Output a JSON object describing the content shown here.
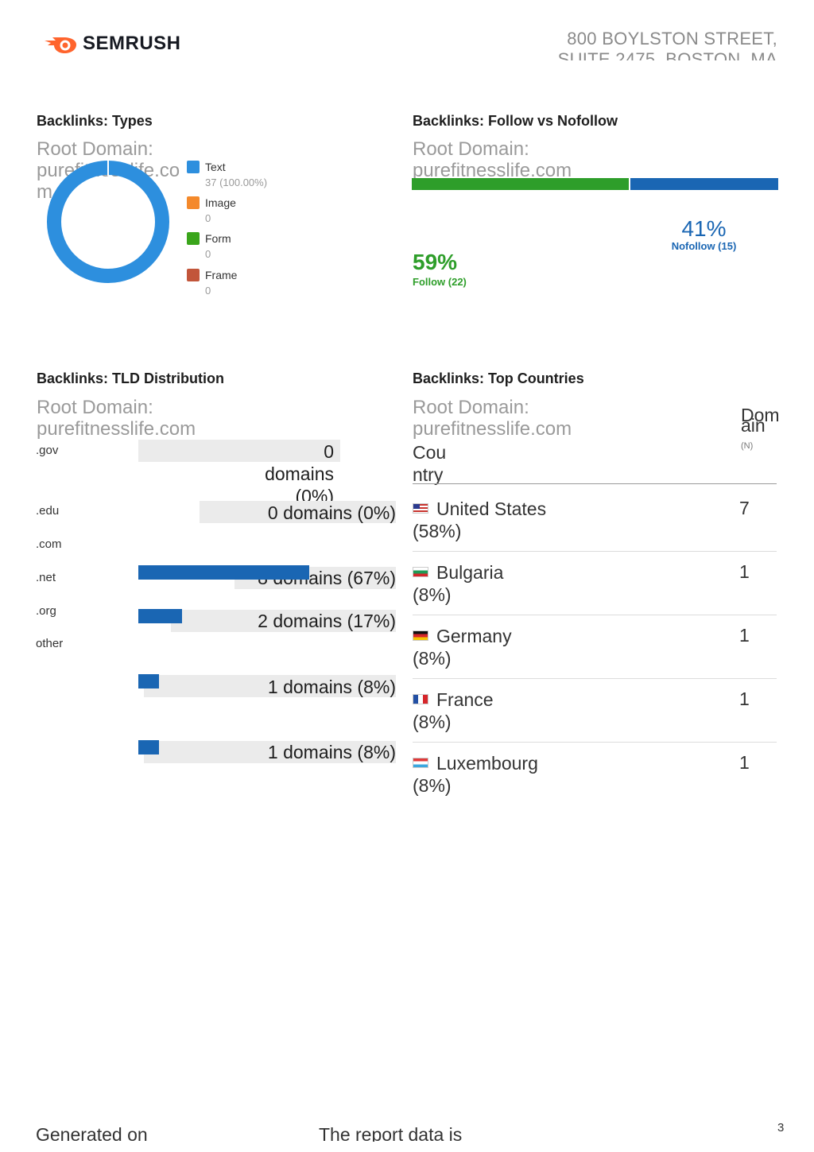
{
  "header": {
    "logo_text": "SEMRUSH",
    "address": "800 BOYLSTON STREET, SUITE 2475, BOSTON, MA"
  },
  "types": {
    "title": "Backlinks: Types",
    "root_label": "Root Domain:",
    "root_domain": "purefitnesslife.com",
    "legend": [
      {
        "name": "Text",
        "value": "37 (100.00%)",
        "color": "#2d8fde"
      },
      {
        "name": "Image",
        "value": "0",
        "color": "#f4892b"
      },
      {
        "name": "Form",
        "value": "0",
        "color": "#3aa51b"
      },
      {
        "name": "Frame",
        "value": "0",
        "color": "#c2553a"
      }
    ],
    "chart_data": {
      "type": "pie",
      "categories": [
        "Text",
        "Image",
        "Form",
        "Frame"
      ],
      "values": [
        37,
        0,
        0,
        0
      ]
    }
  },
  "follow": {
    "title": "Backlinks: Follow vs Nofollow",
    "root_label": "Root Domain:",
    "root_domain": "purefitnesslife.com",
    "follow_pct": "59%",
    "follow_label": "Follow (22)",
    "nofollow_pct": "41%",
    "nofollow_label": "Nofollow (15)",
    "follow_color": "#2e9e2a",
    "nofollow_color": "#1a66b3",
    "chart_data": {
      "type": "bar",
      "categories": [
        "Follow",
        "Nofollow"
      ],
      "values": [
        22,
        15
      ]
    }
  },
  "tld": {
    "title": "Backlinks: TLD Distribution",
    "root_label": "Root Domain:",
    "root_domain": "purefitnesslife.com",
    "labels": [
      ".gov",
      ".edu",
      ".com",
      ".net",
      ".org",
      "other"
    ],
    "bars": [
      {
        "label": "0 domains (0%)",
        "fraction": 0
      },
      {
        "label": "0 domains (0%)",
        "fraction": 0
      },
      {
        "label": "8 domains (67%)",
        "fraction": 0.67
      },
      {
        "label": "2 domains (17%)",
        "fraction": 0.17
      },
      {
        "label": "1 domains (8%)",
        "fraction": 0.08
      },
      {
        "label": "1 domains (8%)",
        "fraction": 0.08
      }
    ],
    "chart_data": {
      "type": "bar",
      "categories": [
        ".gov",
        ".edu",
        ".com",
        ".net",
        ".org",
        "other"
      ],
      "values": [
        0,
        0,
        8,
        2,
        1,
        1
      ]
    }
  },
  "countries": {
    "title": "Backlinks: Top Countries",
    "root_label": "Root Domain:",
    "root_domain": "purefitnesslife.com",
    "col_country": "Country",
    "col_domain": "Domain",
    "col_domain_sub": "(N)",
    "rows": [
      {
        "name": "United States",
        "pct": "(58%)",
        "count": "7",
        "flag": "us"
      },
      {
        "name": "Bulgaria",
        "pct": "(8%)",
        "count": "1",
        "flag": "bg"
      },
      {
        "name": "Germany",
        "pct": "(8%)",
        "count": "1",
        "flag": "de"
      },
      {
        "name": "France",
        "pct": "(8%)",
        "count": "1",
        "flag": "fr"
      },
      {
        "name": "Luxembourg",
        "pct": "(8%)",
        "count": "1",
        "flag": "lu"
      }
    ]
  },
  "footer": {
    "generated": "Generated on",
    "report": "The report data is",
    "page_number": "3"
  }
}
